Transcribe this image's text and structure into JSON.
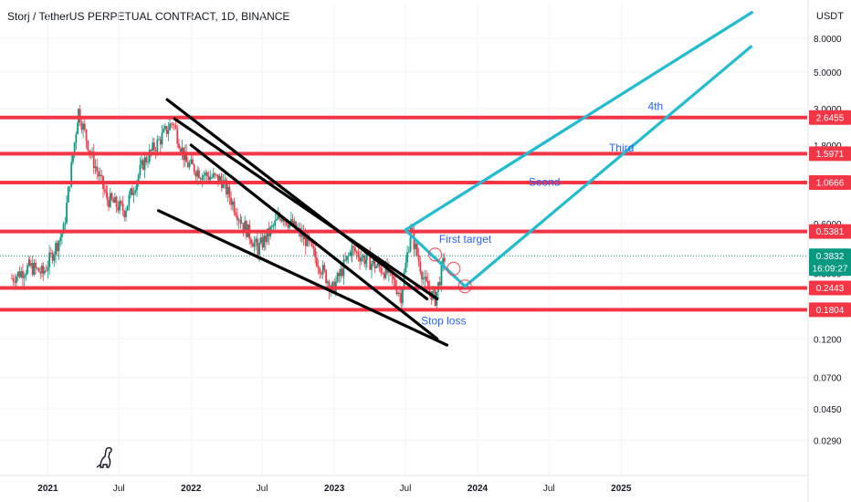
{
  "title": "Storj / TetherUS PERPETUAL CONTRACT, 1D, BINANCE",
  "unit": "USDT",
  "colors": {
    "level": "#f23645",
    "trend": "#000000",
    "projection": "#22bcd0",
    "annotation": "#2962ff",
    "up": "#089981",
    "down": "#f23645",
    "current": "#089981",
    "grid": "#f0f3fa"
  },
  "icons": {
    "logo": "dinosaur-icon"
  },
  "chart_data": {
    "type": "candlestick",
    "x_range": [
      "2020-09-01",
      "2026-04-20"
    ],
    "ylim": [
      0.018,
      13
    ],
    "y_scale": "log",
    "grid": true,
    "y_ticks": [
      "8.0000",
      "5.0000",
      "3.0000",
      "1.8000",
      "1.0666",
      "0.6000",
      "0.3000",
      "0.1200",
      "0.0700",
      "0.0450",
      "0.0290"
    ],
    "x_ticks": [
      {
        "label": "2021",
        "date": "2021-01-01",
        "bold": true
      },
      {
        "label": "Jul",
        "date": "2021-07-01",
        "bold": false
      },
      {
        "label": "2022",
        "date": "2022-01-01",
        "bold": true
      },
      {
        "label": "Jul",
        "date": "2022-07-01",
        "bold": false
      },
      {
        "label": "2023",
        "date": "2023-01-01",
        "bold": true
      },
      {
        "label": "Jul",
        "date": "2023-07-01",
        "bold": false
      },
      {
        "label": "2024",
        "date": "2024-01-01",
        "bold": true
      },
      {
        "label": "Jul",
        "date": "2024-07-01",
        "bold": false
      },
      {
        "label": "2025",
        "date": "2025-01-01",
        "bold": true
      }
    ],
    "price_path": [
      [
        "2020-10-01",
        0.28
      ],
      [
        "2020-11-15",
        0.33
      ],
      [
        "2020-12-20",
        0.3
      ],
      [
        "2021-02-10",
        0.55
      ],
      [
        "2021-03-20",
        2.9
      ],
      [
        "2021-04-20",
        1.6
      ],
      [
        "2021-06-01",
        0.85
      ],
      [
        "2021-07-15",
        0.72
      ],
      [
        "2021-09-01",
        1.4
      ],
      [
        "2021-11-15",
        2.5
      ],
      [
        "2021-12-20",
        1.4
      ],
      [
        "2022-01-30",
        1.2
      ],
      [
        "2022-03-20",
        1.1
      ],
      [
        "2022-05-10",
        0.62
      ],
      [
        "2022-06-20",
        0.42
      ],
      [
        "2022-08-20",
        0.68
      ],
      [
        "2022-10-20",
        0.48
      ],
      [
        "2022-12-28",
        0.24
      ],
      [
        "2023-02-15",
        0.42
      ],
      [
        "2023-03-25",
        0.36
      ],
      [
        "2023-05-20",
        0.3
      ],
      [
        "2023-06-20",
        0.22
      ],
      [
        "2023-07-15",
        0.54
      ],
      [
        "2023-08-20",
        0.26
      ],
      [
        "2023-09-15",
        0.21
      ],
      [
        "2023-10-10",
        0.3833
      ]
    ],
    "levels": [
      2.6455,
      1.5971,
      1.0666,
      0.5381,
      0.2443,
      0.1804
    ],
    "last_price": "0.3832",
    "countdown": "16:09:27",
    "trend_lines": [
      {
        "from": [
          "2021-11-01",
          3.4
        ],
        "to": [
          "2023-08-25",
          0.21
        ]
      },
      {
        "from": [
          "2021-11-20",
          2.6
        ],
        "to": [
          "2023-09-20",
          0.21
        ]
      },
      {
        "from": [
          "2021-10-10",
          0.72
        ],
        "to": [
          "2023-10-15",
          0.11
        ]
      },
      {
        "from": [
          "2022-01-01",
          1.8
        ],
        "to": [
          "2023-09-20",
          0.12
        ]
      }
    ],
    "projection_path": [
      [
        "2023-07-01",
        0.55
      ],
      [
        "2023-11-30",
        0.25
      ],
      [
        "2025-11-30",
        7.2
      ]
    ],
    "projection_parallel": [
      [
        "2023-07-01",
        0.55
      ],
      [
        "2025-11-30",
        11.5
      ]
    ],
    "marker_circles": [
      [
        "2023-09-15",
        0.39
      ],
      [
        "2023-11-01",
        0.32
      ],
      [
        "2023-11-30",
        0.25
      ]
    ],
    "annotations": [
      {
        "text": "4th",
        "date": "2025-03-10",
        "value": 2.95
      },
      {
        "text": "Third",
        "date": "2024-12-01",
        "value": 1.65
      },
      {
        "text": "Seond",
        "date": "2024-05-10",
        "value": 1.02
      },
      {
        "text": "First target",
        "date": "2023-09-25",
        "value": 0.46
      },
      {
        "text": "Stop loss",
        "date": "2023-08-10",
        "value": 0.147
      }
    ]
  }
}
